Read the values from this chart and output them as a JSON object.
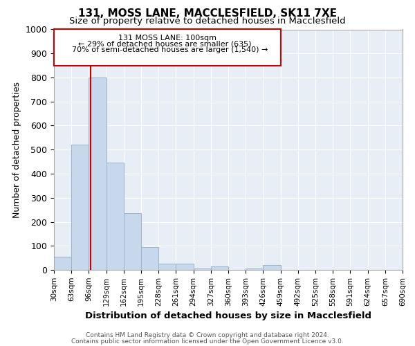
{
  "title": "131, MOSS LANE, MACCLESFIELD, SK11 7XE",
  "subtitle": "Size of property relative to detached houses in Macclesfield",
  "xlabel": "Distribution of detached houses by size in Macclesfield",
  "ylabel": "Number of detached properties",
  "bar_values": [
    55,
    520,
    800,
    445,
    235,
    95,
    25,
    25,
    5,
    15,
    0,
    5,
    20,
    0,
    0,
    0,
    0,
    0,
    0,
    0
  ],
  "bin_edges": [
    30,
    63,
    96,
    129,
    162,
    195,
    228,
    261,
    294,
    327,
    360,
    393,
    426,
    459,
    492,
    525,
    558,
    591,
    624,
    657,
    690
  ],
  "bar_color": "#c8d8ec",
  "bar_edge_color": "#9ab4cc",
  "property_size": 100,
  "annotation_title": "131 MOSS LANE: 100sqm",
  "annotation_line1": "← 29% of detached houses are smaller (635)",
  "annotation_line2": "70% of semi-detached houses are larger (1,540) →",
  "annotation_box_color": "#cc0000",
  "marker_line_color": "#cc0000",
  "ylim": [
    0,
    1000
  ],
  "yticks": [
    0,
    100,
    200,
    300,
    400,
    500,
    600,
    700,
    800,
    900,
    1000
  ],
  "plot_bg_color": "#e8eef5",
  "fig_bg_color": "#ffffff",
  "grid_color": "#ffffff",
  "footnote1": "Contains HM Land Registry data © Crown copyright and database right 2024.",
  "footnote2": "Contains public sector information licensed under the Open Government Licence v3.0."
}
